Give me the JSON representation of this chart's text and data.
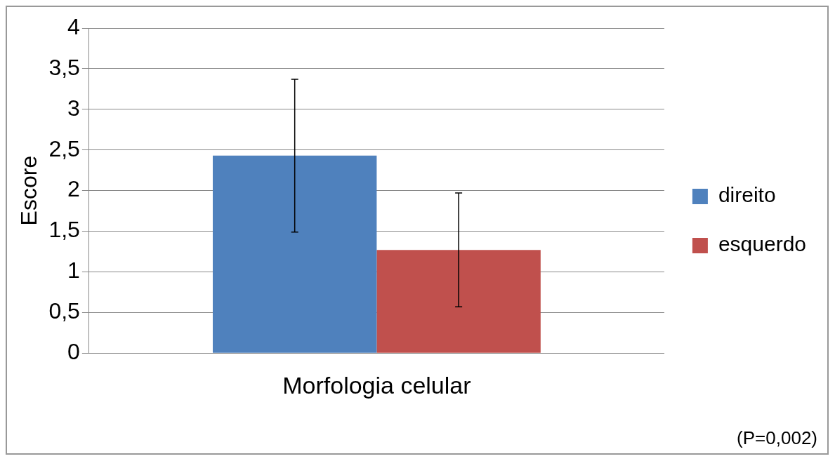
{
  "chart_data": {
    "type": "bar",
    "ylabel": "Escore",
    "categories": [
      "Morfologia celular"
    ],
    "series": [
      {
        "name": "direito",
        "color": "#4f81bd",
        "values": [
          2.43
        ],
        "errors": [
          0.94
        ]
      },
      {
        "name": "esquerdo",
        "color": "#c0504d",
        "values": [
          1.27
        ],
        "errors": [
          0.7
        ]
      }
    ],
    "ylim": [
      0,
      4
    ],
    "yticks": [
      0,
      {
        "value": 0.5,
        "label": "0,5"
      },
      1,
      {
        "value": 1.5,
        "label": "1,5"
      },
      2,
      {
        "value": 2.5,
        "label": "2,5"
      },
      3,
      {
        "value": 3.5,
        "label": "3,5"
      },
      4
    ],
    "grid": "y",
    "legend": "right",
    "annotations": [
      "(P=0,002)"
    ]
  }
}
